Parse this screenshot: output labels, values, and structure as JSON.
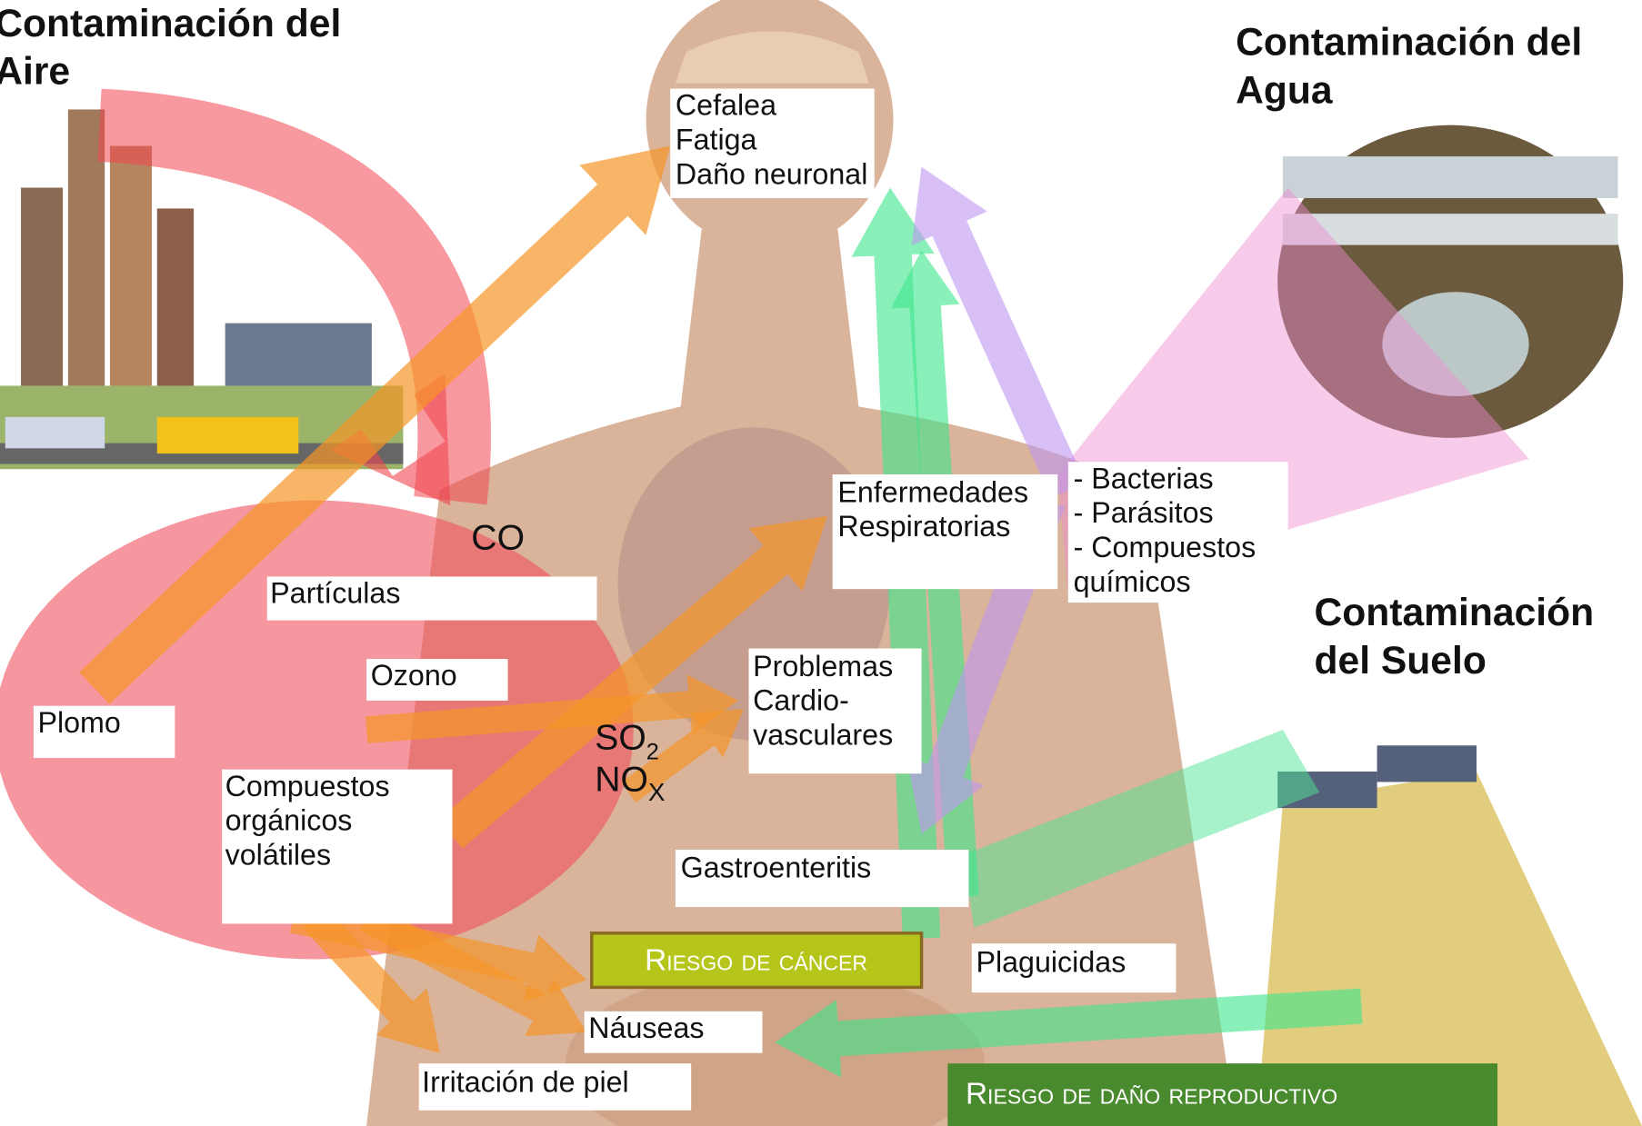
{
  "titles": {
    "air": [
      "Contaminación del",
      "Aire"
    ],
    "water": [
      "Contaminación del",
      "Agua"
    ],
    "soil": [
      "Contaminación",
      "del Suelo"
    ]
  },
  "effects": {
    "head": [
      "Cefalea",
      "Fatiga",
      "Daño neuronal"
    ],
    "respiratory": [
      "Enfermedades",
      "Respiratorias"
    ],
    "cardio": [
      "Problemas",
      "Cardio-",
      "vasculares"
    ],
    "gastro": "Gastroenteritis",
    "nausea": "Náuseas",
    "skin": "Irritación de piel",
    "cancer": "Riesgo de cáncer",
    "reproductive": "Riesgo de daño reproductivo"
  },
  "air_pollutants": {
    "co": "CO",
    "particles": "Partículas",
    "ozone": "Ozono",
    "lead": "Plomo",
    "voc": [
      "Compuestos",
      "orgánicos",
      "volátiles"
    ],
    "so2": [
      "SO",
      "2"
    ],
    "nox": [
      "NO",
      "X"
    ]
  },
  "water_pollutants": [
    "- Bacterias",
    "- Parásitos",
    "- Compuestos",
    "químicos"
  ],
  "soil_pollutants": {
    "pesticides": "Plaguicidas"
  }
}
